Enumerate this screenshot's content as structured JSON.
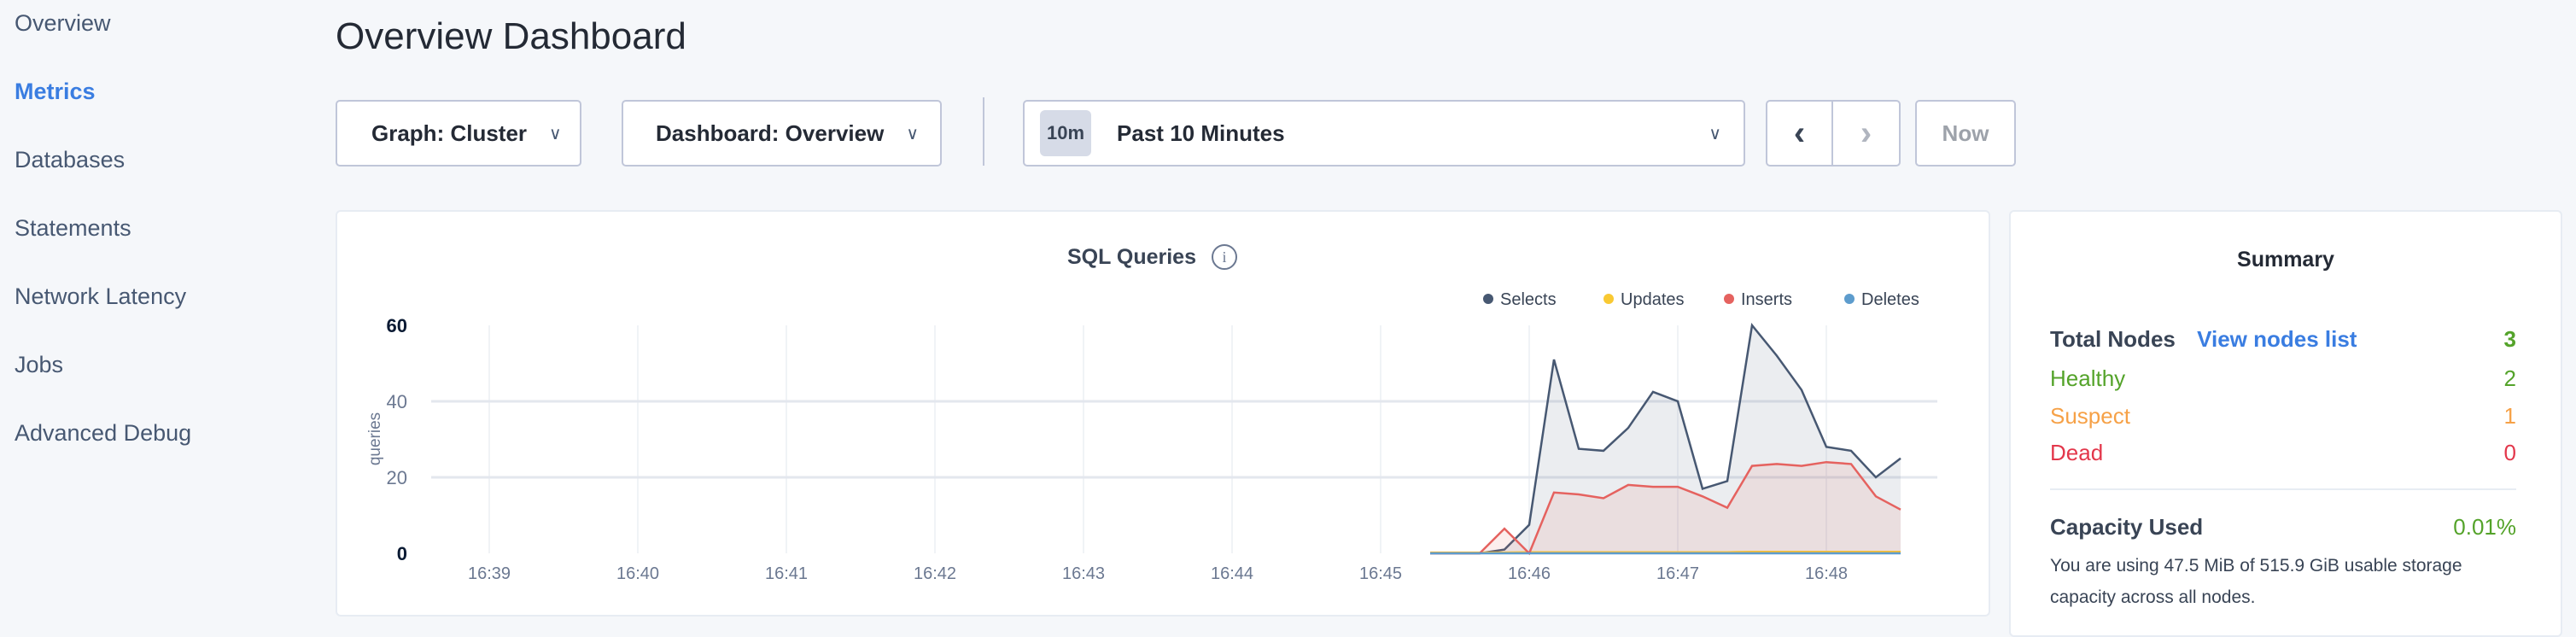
{
  "sidebar": {
    "items": [
      {
        "label": "Overview"
      },
      {
        "label": "Metrics",
        "active": true
      },
      {
        "label": "Databases"
      },
      {
        "label": "Statements"
      },
      {
        "label": "Network Latency"
      },
      {
        "label": "Jobs"
      },
      {
        "label": "Advanced Debug"
      }
    ]
  },
  "header": {
    "title": "Overview Dashboard"
  },
  "toolbar": {
    "graph": "Graph: Cluster",
    "dashboard": "Dashboard: Overview",
    "time_badge": "10m",
    "time_range": "Past 10 Minutes",
    "now": "Now"
  },
  "chart_data": {
    "type": "area",
    "title": "SQL Queries",
    "ylabel": "queries",
    "ylim": [
      0,
      60
    ],
    "yticks": [
      "0",
      "20",
      "40",
      "60"
    ],
    "xticks": [
      "16:39",
      "16:40",
      "16:41",
      "16:42",
      "16:43",
      "16:44",
      "16:45",
      "16:46",
      "16:47",
      "16:48"
    ],
    "x": [
      "16:45:20",
      "16:45:30",
      "16:45:40",
      "16:45:50",
      "16:46:00",
      "16:46:10",
      "16:46:20",
      "16:46:30",
      "16:46:40",
      "16:46:50",
      "16:47:00",
      "16:47:10",
      "16:47:20",
      "16:47:30",
      "16:47:40",
      "16:47:50",
      "16:48:00",
      "16:48:10",
      "16:48:20",
      "16:48:30"
    ],
    "legend": "top-right",
    "series": [
      {
        "name": "Selects",
        "color": "#475872",
        "values": [
          0,
          0,
          0,
          1,
          7.5,
          51,
          27.5,
          27,
          33,
          42.5,
          40,
          17,
          19,
          60,
          52,
          43,
          28,
          27,
          20,
          25
        ]
      },
      {
        "name": "Updates",
        "color": "#f9c932",
        "values": [
          0.2,
          0.2,
          0.2,
          0.2,
          0.3,
          0.3,
          0.3,
          0.3,
          0.3,
          0.3,
          0.3,
          0.3,
          0.3,
          0.4,
          0.4,
          0.4,
          0.4,
          0.4,
          0.4,
          0.4
        ]
      },
      {
        "name": "Inserts",
        "color": "#e5625f",
        "values": [
          0,
          0,
          0,
          6.5,
          0,
          16,
          15.5,
          14.5,
          18,
          17.5,
          17.5,
          15,
          12,
          23,
          23.5,
          23,
          24,
          23.5,
          15,
          11.5
        ]
      },
      {
        "name": "Deletes",
        "color": "#5d9ccd",
        "values": [
          0,
          0,
          0,
          0,
          0,
          0,
          0,
          0,
          0,
          0,
          0,
          0,
          0,
          0,
          0,
          0,
          0,
          0,
          0,
          0
        ]
      }
    ]
  },
  "summary": {
    "title": "Summary",
    "total_label": "Total Nodes",
    "view_link": "View nodes list",
    "total": "3",
    "healthy_label": "Healthy",
    "healthy": "2",
    "suspect_label": "Suspect",
    "suspect": "1",
    "dead_label": "Dead",
    "dead": "0",
    "capacity_label": "Capacity Used",
    "capacity": "0.01%",
    "capacity_text": "You are using 47.5 MiB of 515.9 GiB usable storage capacity across all nodes.",
    "colors": {
      "healthy": "#54a32a",
      "suspect": "#f6a147",
      "dead": "#e3374b",
      "link": "#3a7de1"
    }
  }
}
